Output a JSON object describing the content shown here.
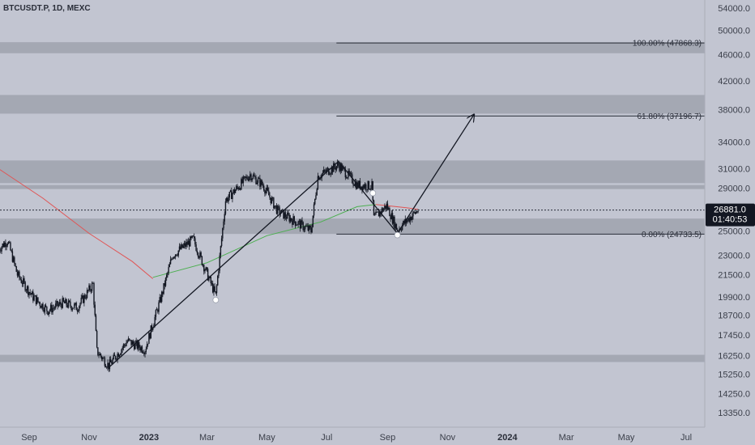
{
  "header": {
    "ticker": "BTCUSDT.P, 1D, MEXC"
  },
  "price_label": {
    "price": "26881.0",
    "countdown": "01:40:53"
  },
  "chart_data": {
    "type": "candlestick",
    "symbol": "BTCUSDT.P",
    "interval": "1D",
    "exchange": "MEXC",
    "y_ticks": [
      54000.0,
      50000.0,
      46000.0,
      42000.0,
      38000.0,
      34000.0,
      31000.0,
      29000.0,
      27000.0,
      25000.0,
      23000.0,
      21500.0,
      19900.0,
      18700.0,
      17450.0,
      16250.0,
      15250.0,
      14250.0,
      13350.0
    ],
    "y_tick_labels": [
      "54000.0",
      "50000.0",
      "46000.0",
      "42000.0",
      "38000.0",
      "34000.0",
      "31000.0",
      "29000.0",
      "27000.0",
      "25000.0",
      "23000.0",
      "21500.0",
      "19900.0",
      "18700.0",
      "17450.0",
      "16250.0",
      "15250.0",
      "14250.0",
      "13350.0"
    ],
    "y_scale": "log",
    "x_ticks": [
      {
        "label": "Sep",
        "date": "2022-09-01"
      },
      {
        "label": "Nov",
        "date": "2022-11-01"
      },
      {
        "label": "2023",
        "date": "2023-01-01",
        "bold": true
      },
      {
        "label": "Mar",
        "date": "2023-03-01"
      },
      {
        "label": "May",
        "date": "2023-05-01"
      },
      {
        "label": "Jul",
        "date": "2023-07-01"
      },
      {
        "label": "Sep",
        "date": "2023-09-01"
      },
      {
        "label": "Nov",
        "date": "2023-11-01"
      },
      {
        "label": "2024",
        "date": "2024-01-01",
        "bold": true
      },
      {
        "label": "Mar",
        "date": "2024-03-01"
      },
      {
        "label": "May",
        "date": "2024-05-01"
      },
      {
        "label": "Jul",
        "date": "2024-07-01"
      }
    ],
    "price_path": [
      {
        "date": "2022-08-01",
        "price": 23500
      },
      {
        "date": "2022-08-10",
        "price": 24200
      },
      {
        "date": "2022-08-20",
        "price": 21500
      },
      {
        "date": "2022-09-05",
        "price": 19900
      },
      {
        "date": "2022-09-20",
        "price": 19000
      },
      {
        "date": "2022-10-05",
        "price": 19500
      },
      {
        "date": "2022-10-20",
        "price": 19200
      },
      {
        "date": "2022-11-05",
        "price": 20800
      },
      {
        "date": "2022-11-09",
        "price": 16500
      },
      {
        "date": "2022-11-21",
        "price": 15700
      },
      {
        "date": "2022-12-10",
        "price": 17100
      },
      {
        "date": "2022-12-28",
        "price": 16600
      },
      {
        "date": "2023-01-13",
        "price": 19800
      },
      {
        "date": "2023-01-25",
        "price": 23000
      },
      {
        "date": "2023-02-15",
        "price": 24300
      },
      {
        "date": "2023-03-10",
        "price": 20000
      },
      {
        "date": "2023-03-20",
        "price": 27800
      },
      {
        "date": "2023-04-14",
        "price": 30400
      },
      {
        "date": "2023-04-27",
        "price": 29300
      },
      {
        "date": "2023-05-12",
        "price": 26800
      },
      {
        "date": "2023-06-15",
        "price": 25000
      },
      {
        "date": "2023-06-22",
        "price": 30200
      },
      {
        "date": "2023-07-13",
        "price": 31400
      },
      {
        "date": "2023-08-01",
        "price": 29300
      },
      {
        "date": "2023-08-16",
        "price": 29200
      },
      {
        "date": "2023-08-18",
        "price": 26100
      },
      {
        "date": "2023-08-31",
        "price": 27300
      },
      {
        "date": "2023-09-11",
        "price": 25100
      },
      {
        "date": "2023-09-25",
        "price": 26300
      },
      {
        "date": "2023-10-02",
        "price": 26881
      }
    ],
    "moving_averages": [
      {
        "name": "",
        "color": "#e05555",
        "values": [
          {
            "date": "2022-08-01",
            "price": 31000
          },
          {
            "date": "2022-09-15",
            "price": 28000
          },
          {
            "date": "2022-11-01",
            "price": 24800
          },
          {
            "date": "2022-12-15",
            "price": 22500
          },
          {
            "date": "2023-01-05",
            "price": 21200
          }
        ]
      },
      {
        "name": "",
        "color": "#4caf50",
        "values": [
          {
            "date": "2023-01-05",
            "price": 21300
          },
          {
            "date": "2023-03-01",
            "price": 22400
          },
          {
            "date": "2023-05-01",
            "price": 24600
          },
          {
            "date": "2023-06-25",
            "price": 25800
          },
          {
            "date": "2023-08-01",
            "price": 27200
          },
          {
            "date": "2023-08-20",
            "price": 27400
          }
        ]
      },
      {
        "name": "",
        "color": "#e05555",
        "values": [
          {
            "date": "2023-08-20",
            "price": 27400
          },
          {
            "date": "2023-09-20",
            "price": 27100
          },
          {
            "date": "2023-10-02",
            "price": 26950
          }
        ]
      }
    ],
    "zones": [
      {
        "low": 46200,
        "high": 48000
      },
      {
        "low": 37500,
        "high": 40000
      },
      {
        "low": 29500,
        "high": 31900
      },
      {
        "low": 28900,
        "high": 29300
      },
      {
        "low": 24750,
        "high": 26100
      },
      {
        "low": 15900,
        "high": 16300
      }
    ],
    "fib_levels": [
      {
        "label": "100.00% (47868.3)",
        "price": 47868.3,
        "start": "2023-07-01"
      },
      {
        "label": "61.80% (37196.7)",
        "price": 37196.7,
        "start": "2023-07-01"
      },
      {
        "label": "0.00% (24733.5)",
        "price": 24733.5,
        "start": "2023-07-01"
      }
    ],
    "trend_lines": [
      {
        "from": {
          "date": "2022-11-21",
          "price": 15600
        },
        "to": {
          "date": "2023-07-13",
          "price": 31800
        }
      },
      {
        "from": {
          "date": "2023-07-13",
          "price": 31800
        },
        "to": {
          "date": "2023-09-11",
          "price": 24800
        }
      },
      {
        "from": {
          "date": "2023-09-11",
          "price": 24800
        },
        "to": {
          "date": "2023-11-28",
          "price": 37400
        },
        "arrow": true
      }
    ],
    "markers": [
      {
        "date": "2023-03-10",
        "price": 19700
      },
      {
        "date": "2023-08-17",
        "price": 28500
      },
      {
        "date": "2023-09-11",
        "price": 24650
      }
    ],
    "last_price": 26881.0,
    "grid": false
  }
}
